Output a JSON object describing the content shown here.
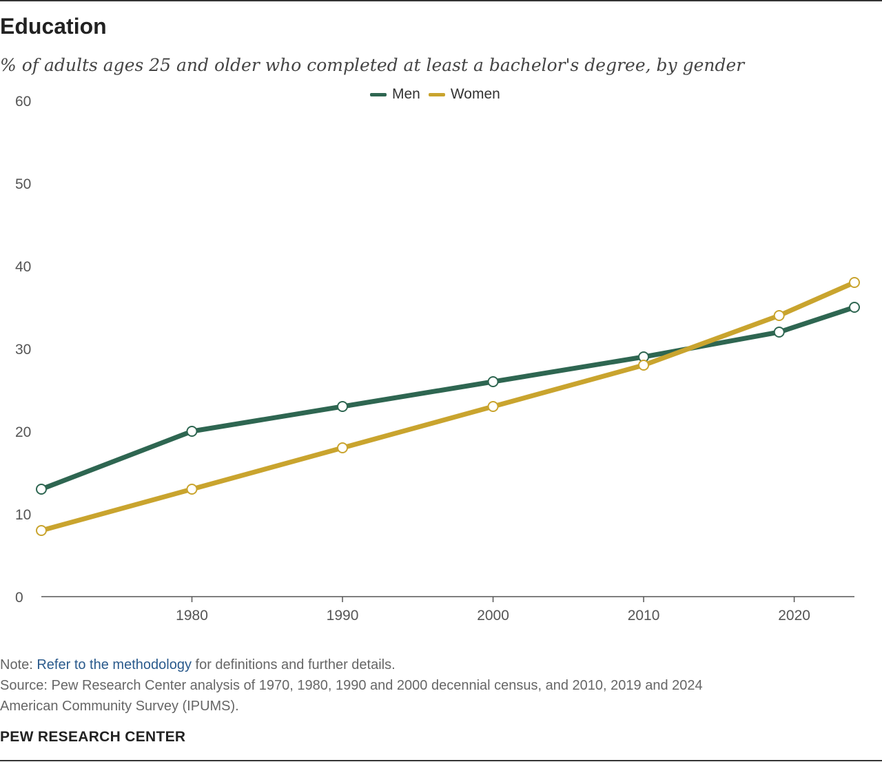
{
  "header": {
    "title": "Education",
    "subtitle": "% of adults ages 25 and older who completed at least a bachelor's degree, by gender"
  },
  "legend": {
    "items": [
      {
        "label": "Men",
        "color": "#2e6651"
      },
      {
        "label": "Women",
        "color": "#c9a42e"
      }
    ]
  },
  "chart_data": {
    "type": "line",
    "title": "Education",
    "subtitle": "% of adults ages 25 and older who completed at least a bachelor's degree, by gender",
    "xlabel": "",
    "ylabel": "",
    "x": [
      1970,
      1980,
      1990,
      2000,
      2010,
      2019,
      2024
    ],
    "x_ticks": [
      1980,
      1990,
      2000,
      2010,
      2020
    ],
    "xlim": [
      1970,
      2024
    ],
    "y_ticks": [
      0,
      10,
      20,
      30,
      40,
      50,
      60
    ],
    "ylim": [
      0,
      60
    ],
    "grid": false,
    "legend_position": "top-center",
    "series": [
      {
        "name": "Men",
        "color": "#2e6651",
        "values": [
          13,
          20,
          23,
          26,
          29,
          32,
          35
        ]
      },
      {
        "name": "Women",
        "color": "#c9a42e",
        "values": [
          8,
          13,
          18,
          23,
          28,
          34,
          38
        ]
      }
    ]
  },
  "footer": {
    "note_prefix": "Note: ",
    "note_link": "Refer to the methodology",
    "note_suffix": " for definitions and further details.",
    "source_line1": "Source: Pew Research Center analysis of 1970, 1980, 1990 and 2000 decennial census, and 2010, 2019 and 2024",
    "source_line2": "American Community Survey (IPUMS).",
    "brand": "PEW RESEARCH CENTER"
  }
}
